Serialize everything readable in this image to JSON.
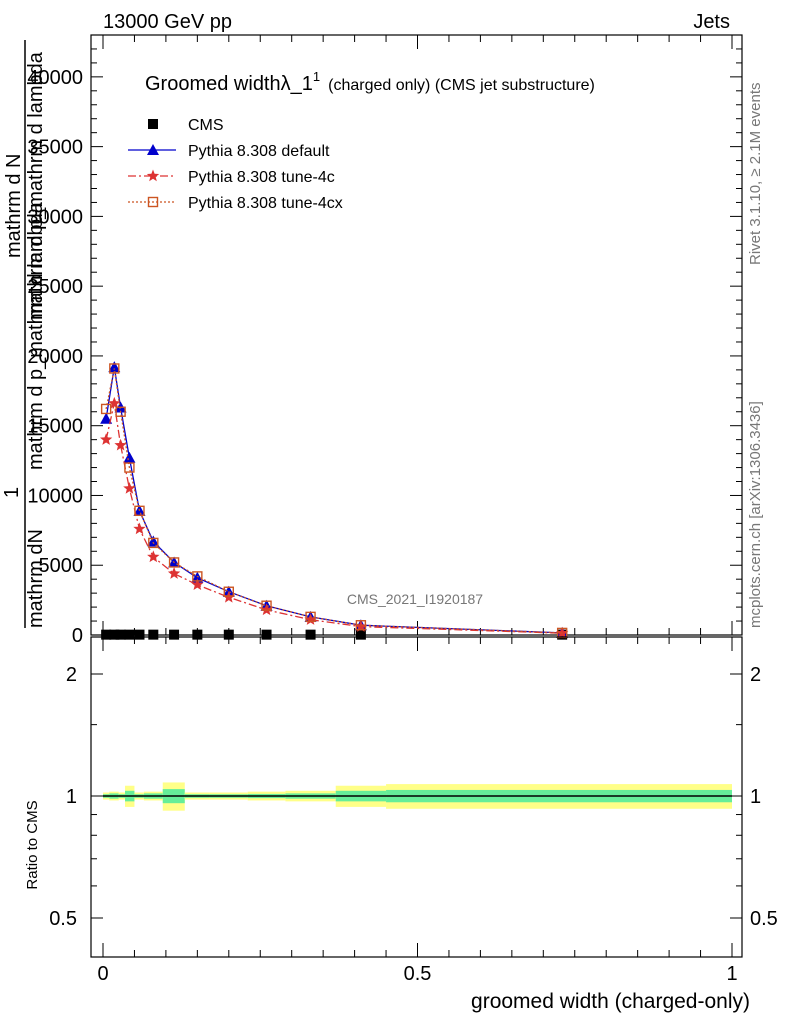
{
  "header": {
    "left": "13000 GeV pp",
    "right": "Jets"
  },
  "side": {
    "rivet": "Rivet 3.1.10, ≥ 2.1M events",
    "mcplots": "mcplots.cern.ch [arXiv:1306.3436]"
  },
  "plot_title": {
    "main": "Groomed widthλ_1",
    "sup": "1",
    "sub": "(charged only) (CMS jet substructure)"
  },
  "watermark": "CMS_2021_I1920187",
  "ylabel_top": {
    "numerator": "1",
    "line1": "mathrm d N",
    "line2": "mathrm dN",
    "line3": "mathrm d p_mathrm d lambda",
    "line4": "mathrm d p_mathrm d lambda"
  },
  "ylabel_bottom": "Ratio to CMS",
  "xlabel": "groomed width (charged-only)",
  "legend": [
    {
      "label": "CMS",
      "color": "#000000",
      "marker": "square"
    },
    {
      "label": "Pythia 8.308 default",
      "color": "#0000cc",
      "marker": "triangle"
    },
    {
      "label": "Pythia 8.308 tune-4c",
      "color": "#dd3333",
      "marker": "star"
    },
    {
      "label": "Pythia 8.308 tune-4cx",
      "color": "#cc5522",
      "marker": "open-square"
    }
  ],
  "chart_data": {
    "type": "line",
    "x": [
      0.005,
      0.018,
      0.028,
      0.042,
      0.058,
      0.08,
      0.113,
      0.15,
      0.2,
      0.26,
      0.33,
      0.41,
      0.73
    ],
    "series": [
      {
        "name": "CMS",
        "values": [
          25,
          25,
          25,
          25,
          25,
          25,
          25,
          25,
          25,
          25,
          25,
          25,
          25
        ]
      },
      {
        "name": "Pythia 8.308 default",
        "values": [
          15500,
          19200,
          16300,
          12700,
          8900,
          6700,
          5200,
          4100,
          3100,
          2100,
          1300,
          700,
          150
        ]
      },
      {
        "name": "Pythia 8.308 tune-4c",
        "values": [
          14000,
          16600,
          13600,
          10500,
          7600,
          5600,
          4400,
          3600,
          2700,
          1800,
          1100,
          600,
          130
        ]
      },
      {
        "name": "Pythia 8.308 tune-4cx",
        "values": [
          16200,
          19100,
          16000,
          12000,
          8900,
          6600,
          5200,
          4200,
          3100,
          2100,
          1300,
          700,
          150
        ]
      }
    ],
    "xlim": [
      -0.02,
      1.0
    ],
    "ylim": [
      0,
      43000
    ],
    "yticks": [
      0,
      5000,
      10000,
      15000,
      20000,
      25000,
      30000,
      35000,
      40000
    ],
    "ytick_labels": [
      "0",
      "5000",
      "10000",
      "15000",
      "20000",
      "25000",
      "30000",
      "35000",
      "40000"
    ],
    "xticks": [
      0,
      0.5,
      1
    ],
    "xtick_labels": [
      "0",
      "0.5",
      "1"
    ],
    "ratio": {
      "ylim": [
        0.4,
        2.3
      ],
      "log": true,
      "yticks": [
        0.5,
        1,
        2
      ],
      "ytick_labels": [
        "0.5",
        "1",
        "2"
      ],
      "reference": 1,
      "band_edges": [
        0,
        0.01,
        0.025,
        0.035,
        0.05,
        0.065,
        0.095,
        0.13,
        0.17,
        0.23,
        0.29,
        0.37,
        0.45,
        1.0
      ],
      "inner_band": [
        0.01,
        0.015,
        0.01,
        0.03,
        0.01,
        0.015,
        0.04,
        0.01,
        0.01,
        0.012,
        0.015,
        0.03,
        0.035
      ],
      "outer_band": [
        0.02,
        0.025,
        0.02,
        0.06,
        0.02,
        0.025,
        0.08,
        0.02,
        0.02,
        0.025,
        0.03,
        0.06,
        0.07
      ],
      "inner_color": "#66ee99",
      "outer_color": "#ffff88"
    }
  }
}
